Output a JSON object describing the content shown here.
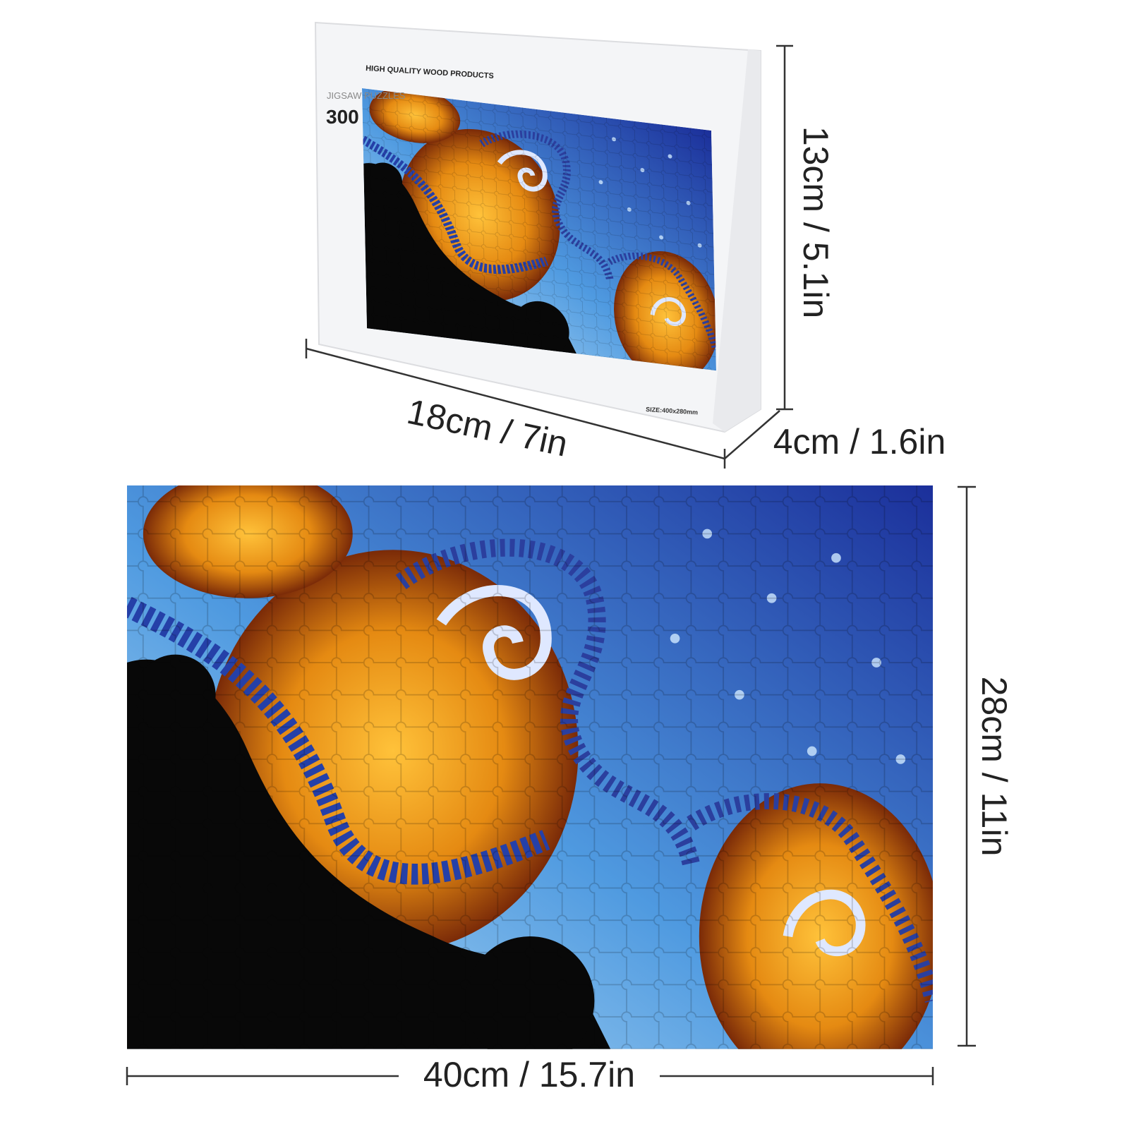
{
  "box": {
    "brand": "HIGH QUALITY WOOD PRODUCTS",
    "label": "JIGSAW PUZZLES",
    "pieces": "300",
    "size": "SIZE:400x280mm"
  },
  "dimensions": {
    "box_height": "13cm / 5.1in",
    "box_width": "18cm / 7in",
    "box_depth": "4cm / 1.6in",
    "puzzle_height": "28cm / 11in",
    "puzzle_width": "40cm / 15.7in"
  }
}
